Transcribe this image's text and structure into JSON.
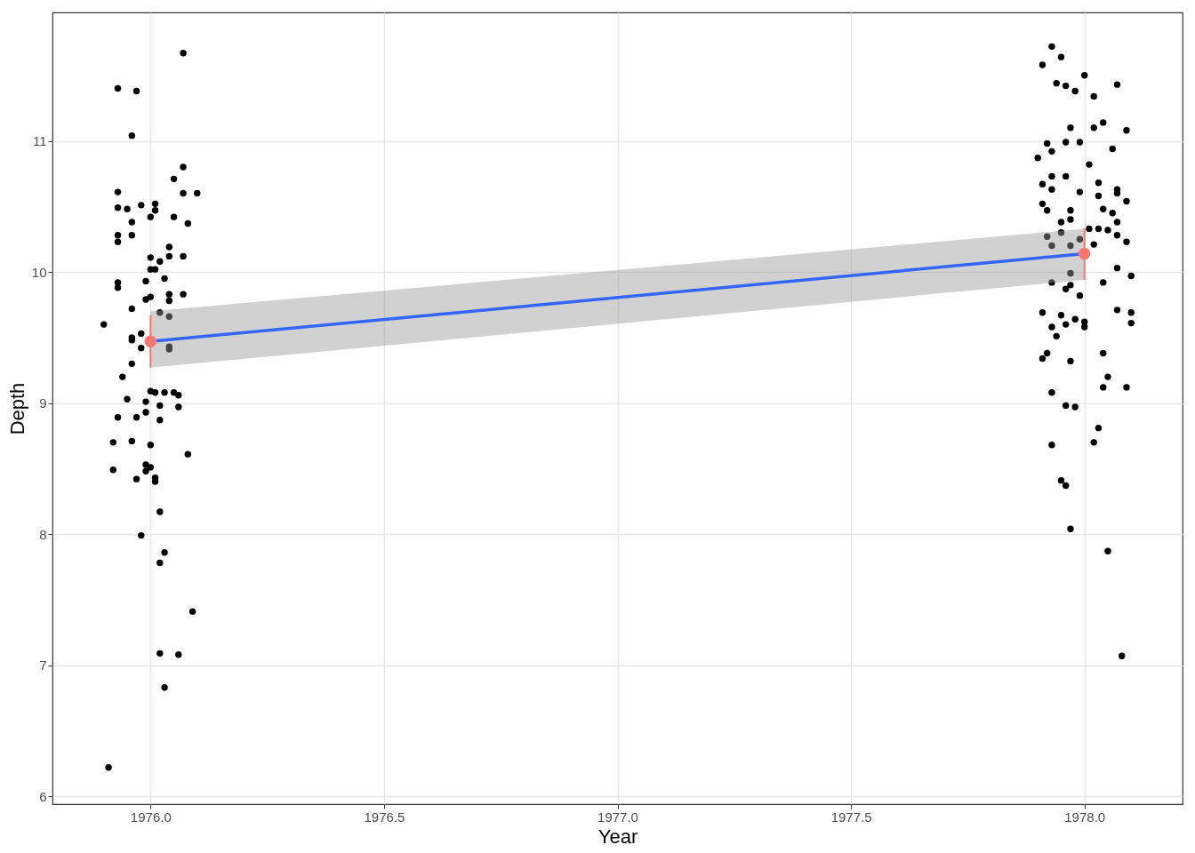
{
  "chart_data": {
    "type": "scatter",
    "xlabel": "Year",
    "ylabel": "Depth",
    "xlim": [
      1975.79,
      1978.21
    ],
    "ylim": [
      5.94,
      11.98
    ],
    "xticks": [
      {
        "value": 1976,
        "label": "1976.0"
      },
      {
        "value": 1976.5,
        "label": "1976.5"
      },
      {
        "value": 1977,
        "label": "1977.0"
      },
      {
        "value": 1977.5,
        "label": "1977.5"
      },
      {
        "value": 1978,
        "label": "1978.0"
      }
    ],
    "yticks": [
      6,
      7,
      8,
      9,
      10,
      11
    ],
    "grid": true,
    "series": [
      {
        "color": "#000000",
        "marker": "circle",
        "x": [
          1975.91,
          1976.07,
          1975.93,
          1975.97,
          1975.96,
          1976.07,
          1975.93,
          1976.05,
          1975.93,
          1975.95,
          1975.98,
          1976.01,
          1976.01,
          1976.1,
          1976.07,
          1976.08,
          1975.93,
          1975.93,
          1975.96,
          1975.96,
          1976.0,
          1976.05,
          1976.04,
          1976.04,
          1975.93,
          1975.93,
          1975.99,
          1976.03,
          1976.07,
          1976.0,
          1976.02,
          1976.0,
          1976.01,
          1976.07,
          1976.04,
          1976.04,
          1975.96,
          1975.99,
          1976.0,
          1976.02,
          1976.04,
          1975.9,
          1975.96,
          1975.98,
          1975.96,
          1975.98,
          1976.04,
          1976.04,
          1975.96,
          1975.94,
          1975.95,
          1975.93,
          1975.99,
          1975.99,
          1975.97,
          1976.0,
          1976.01,
          1976.03,
          1976.05,
          1976.06,
          1976.02,
          1976.06,
          1976.02,
          1975.92,
          1975.96,
          1976.0,
          1975.92,
          1975.97,
          1975.99,
          1976.0,
          1975.99,
          1976.01,
          1976.01,
          1976.08,
          1975.98,
          1976.02,
          1976.03,
          1976.02,
          1976.09,
          1976.02,
          1976.06,
          1976.03,
          1977.93,
          1977.95,
          1977.91,
          1978.0,
          1977.94,
          1977.96,
          1977.98,
          1978.07,
          1978.02,
          1978.04,
          1978.02,
          1978.09,
          1977.97,
          1977.92,
          1977.93,
          1977.96,
          1977.99,
          1977.9,
          1978.06,
          1978.01,
          1977.93,
          1977.96,
          1977.91,
          1977.93,
          1978.03,
          1978.07,
          1978.07,
          1977.99,
          1978.03,
          1978.09,
          1977.91,
          1977.92,
          1977.97,
          1978.04,
          1978.06,
          1977.97,
          1977.95,
          1978.07,
          1978.01,
          1978.03,
          1978.05,
          1978.07,
          1977.92,
          1977.95,
          1978.09,
          1978.02,
          1977.93,
          1977.97,
          1977.99,
          1977.97,
          1978.07,
          1978.1,
          1978.04,
          1977.93,
          1977.96,
          1977.97,
          1977.99,
          1977.91,
          1977.95,
          1977.98,
          1978.0,
          1978.0,
          1977.96,
          1977.93,
          1977.94,
          1978.07,
          1978.1,
          1978.1,
          1977.92,
          1977.91,
          1977.97,
          1978.04,
          1978.05,
          1978.04,
          1978.09,
          1977.93,
          1977.96,
          1977.98,
          1978.03,
          1978.02,
          1977.93,
          1977.95,
          1977.96,
          1977.97,
          1978.05,
          1978.08
        ],
        "values": [
          6.22,
          11.67,
          11.4,
          11.38,
          11.04,
          10.8,
          10.61,
          10.71,
          10.49,
          10.48,
          10.51,
          10.52,
          10.47,
          10.6,
          10.6,
          10.37,
          10.28,
          10.23,
          10.28,
          10.38,
          10.42,
          10.42,
          10.19,
          10.12,
          9.92,
          9.88,
          9.93,
          9.95,
          10.12,
          10.11,
          10.08,
          10.02,
          10.02,
          9.83,
          9.83,
          9.78,
          9.72,
          9.79,
          9.81,
          9.69,
          9.66,
          9.6,
          9.5,
          9.53,
          9.48,
          9.42,
          9.41,
          9.43,
          9.3,
          9.2,
          9.03,
          8.89,
          9.01,
          8.93,
          8.89,
          9.09,
          9.08,
          9.08,
          9.08,
          9.06,
          8.98,
          8.97,
          8.87,
          8.7,
          8.71,
          8.68,
          8.49,
          8.42,
          8.53,
          8.51,
          8.48,
          8.43,
          8.4,
          8.61,
          7.99,
          8.17,
          7.86,
          7.78,
          7.41,
          7.09,
          7.08,
          6.83,
          11.72,
          11.64,
          11.58,
          11.5,
          11.44,
          11.42,
          11.38,
          11.43,
          11.34,
          11.14,
          11.1,
          11.08,
          11.1,
          10.98,
          10.92,
          10.99,
          10.99,
          10.87,
          10.94,
          10.82,
          10.73,
          10.73,
          10.67,
          10.63,
          10.68,
          10.63,
          10.6,
          10.61,
          10.58,
          10.54,
          10.52,
          10.47,
          10.47,
          10.48,
          10.45,
          10.4,
          10.38,
          10.38,
          10.33,
          10.33,
          10.32,
          10.28,
          10.27,
          10.3,
          10.23,
          10.21,
          10.2,
          10.2,
          10.25,
          9.99,
          10.03,
          9.97,
          9.92,
          9.92,
          9.87,
          9.9,
          9.82,
          9.69,
          9.67,
          9.64,
          9.62,
          9.58,
          9.6,
          9.58,
          9.51,
          9.71,
          9.69,
          9.61,
          9.38,
          9.34,
          9.32,
          9.38,
          9.2,
          9.12,
          9.12,
          9.08,
          8.98,
          8.97,
          8.81,
          8.7,
          8.68,
          8.41,
          8.37,
          8.04,
          7.87,
          7.07
        ]
      },
      {
        "type": "line",
        "color": "#3366ff",
        "line_style": "solid",
        "x": [
          1976,
          1978
        ],
        "values": [
          9.47,
          10.14
        ],
        "lower": [
          9.27,
          9.94
        ],
        "upper": [
          9.7,
          10.33
        ]
      },
      {
        "type": "scatter",
        "color": "#f8766d",
        "marker": "circle",
        "x": [
          1976,
          1978
        ],
        "values": [
          9.47,
          10.14
        ],
        "errors": [
          [
            9.27,
            9.67
          ],
          [
            9.94,
            10.33
          ]
        ]
      }
    ]
  }
}
